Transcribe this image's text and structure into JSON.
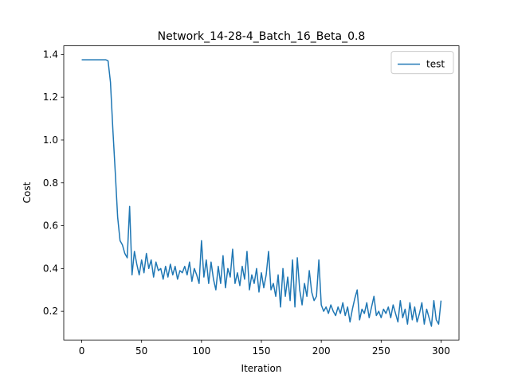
{
  "chart_data": {
    "type": "line",
    "title": "Network_14-28-4_Batch_16_Beta_0.8",
    "x_label": "Iteration",
    "y_label": "Cost",
    "x": [
      0,
      2,
      4,
      6,
      8,
      10,
      12,
      14,
      16,
      18,
      20,
      22,
      24,
      26,
      28,
      30,
      32,
      34,
      36,
      38,
      40,
      42,
      44,
      46,
      48,
      50,
      52,
      54,
      56,
      58,
      60,
      62,
      64,
      66,
      68,
      70,
      72,
      74,
      76,
      78,
      80,
      82,
      84,
      86,
      88,
      90,
      92,
      94,
      96,
      98,
      100,
      102,
      104,
      106,
      108,
      110,
      112,
      114,
      116,
      118,
      120,
      122,
      124,
      126,
      128,
      130,
      132,
      134,
      136,
      138,
      140,
      142,
      144,
      146,
      148,
      150,
      152,
      154,
      156,
      158,
      160,
      162,
      164,
      166,
      168,
      170,
      172,
      174,
      176,
      178,
      180,
      182,
      184,
      186,
      188,
      190,
      192,
      194,
      196,
      198,
      200,
      202,
      204,
      206,
      208,
      210,
      212,
      214,
      216,
      218,
      220,
      222,
      224,
      226,
      228,
      230,
      232,
      234,
      236,
      238,
      240,
      242,
      244,
      246,
      248,
      250,
      252,
      254,
      256,
      258,
      260,
      262,
      264,
      266,
      268,
      270,
      272,
      274,
      276,
      278,
      280,
      282,
      284,
      286,
      288,
      290,
      292,
      294,
      296,
      298,
      300
    ],
    "series": [
      {
        "name": "test",
        "color": "#1f77b4",
        "values": [
          1.375,
          1.375,
          1.375,
          1.375,
          1.375,
          1.375,
          1.375,
          1.375,
          1.375,
          1.375,
          1.375,
          1.37,
          1.27,
          1.05,
          0.85,
          0.64,
          0.53,
          0.51,
          0.47,
          0.45,
          0.69,
          0.37,
          0.48,
          0.42,
          0.37,
          0.44,
          0.38,
          0.47,
          0.4,
          0.44,
          0.36,
          0.43,
          0.39,
          0.4,
          0.35,
          0.41,
          0.36,
          0.42,
          0.37,
          0.41,
          0.35,
          0.39,
          0.38,
          0.41,
          0.37,
          0.43,
          0.34,
          0.4,
          0.37,
          0.33,
          0.53,
          0.36,
          0.44,
          0.33,
          0.43,
          0.35,
          0.3,
          0.41,
          0.33,
          0.46,
          0.31,
          0.4,
          0.36,
          0.49,
          0.33,
          0.38,
          0.32,
          0.41,
          0.35,
          0.48,
          0.3,
          0.37,
          0.33,
          0.4,
          0.29,
          0.38,
          0.31,
          0.37,
          0.48,
          0.3,
          0.33,
          0.27,
          0.37,
          0.22,
          0.4,
          0.27,
          0.36,
          0.25,
          0.44,
          0.22,
          0.45,
          0.3,
          0.23,
          0.33,
          0.27,
          0.39,
          0.29,
          0.25,
          0.27,
          0.44,
          0.23,
          0.2,
          0.22,
          0.19,
          0.23,
          0.2,
          0.18,
          0.22,
          0.19,
          0.24,
          0.18,
          0.22,
          0.15,
          0.21,
          0.26,
          0.3,
          0.16,
          0.21,
          0.19,
          0.24,
          0.17,
          0.22,
          0.27,
          0.18,
          0.2,
          0.17,
          0.21,
          0.19,
          0.22,
          0.17,
          0.23,
          0.19,
          0.15,
          0.25,
          0.17,
          0.21,
          0.14,
          0.24,
          0.16,
          0.22,
          0.15,
          0.19,
          0.24,
          0.14,
          0.21,
          0.17,
          0.13,
          0.25,
          0.16,
          0.14,
          0.25
        ]
      }
    ],
    "xlim": [
      -15,
      315
    ],
    "xticks": [
      0,
      50,
      100,
      150,
      200,
      250,
      300
    ],
    "ylim": [
      0.066,
      1.44
    ],
    "yticks": [
      0.2,
      0.4,
      0.6,
      0.8,
      {
        "value": 1,
        "label": "1.0"
      },
      1.2,
      1.4
    ],
    "legend": "upper right"
  }
}
